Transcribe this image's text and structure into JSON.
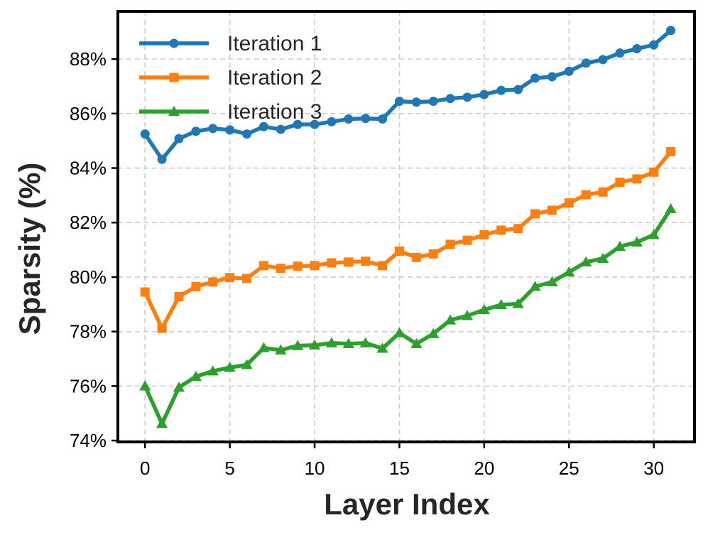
{
  "chart_data": {
    "type": "line",
    "xlabel": "Layer Index",
    "ylabel": "Sparsity (%)",
    "xlim": [
      -1.6,
      32.4
    ],
    "ylim": [
      73.95,
      89.75
    ],
    "xticks": [
      0,
      5,
      10,
      15,
      20,
      25,
      30
    ],
    "yticks": [
      74,
      76,
      78,
      80,
      82,
      84,
      86,
      88
    ],
    "ytick_suffix": "%",
    "grid": true,
    "legend_position": "top-left",
    "x": [
      0,
      1,
      2,
      3,
      4,
      5,
      6,
      7,
      8,
      9,
      10,
      11,
      12,
      13,
      14,
      15,
      16,
      17,
      18,
      19,
      20,
      21,
      22,
      23,
      24,
      25,
      26,
      27,
      28,
      29,
      30,
      31
    ],
    "series": [
      {
        "name": "Iteration 1",
        "color": "#1f77b4",
        "marker": "circle",
        "values": [
          85.25,
          84.32,
          85.08,
          85.35,
          85.45,
          85.4,
          85.25,
          85.52,
          85.42,
          85.6,
          85.6,
          85.7,
          85.8,
          85.82,
          85.8,
          86.45,
          86.42,
          86.45,
          86.55,
          86.6,
          86.7,
          86.85,
          86.88,
          87.3,
          87.35,
          87.55,
          87.85,
          87.98,
          88.22,
          88.38,
          88.52,
          89.05
        ]
      },
      {
        "name": "Iteration 2",
        "color": "#ff7f0e",
        "marker": "square",
        "values": [
          79.45,
          78.12,
          79.28,
          79.65,
          79.82,
          79.98,
          79.95,
          80.42,
          80.32,
          80.4,
          80.42,
          80.52,
          80.55,
          80.58,
          80.42,
          80.95,
          80.72,
          80.85,
          81.2,
          81.35,
          81.55,
          81.72,
          81.78,
          82.32,
          82.45,
          82.72,
          83.02,
          83.12,
          83.48,
          83.6,
          83.85,
          84.6
        ]
      },
      {
        "name": "Iteration 3",
        "color": "#2ca02c",
        "marker": "triangle",
        "values": [
          76.0,
          74.62,
          75.95,
          76.35,
          76.55,
          76.68,
          76.78,
          77.4,
          77.32,
          77.48,
          77.5,
          77.58,
          77.55,
          77.58,
          77.38,
          77.95,
          77.55,
          77.92,
          78.42,
          78.58,
          78.8,
          78.98,
          79.02,
          79.65,
          79.82,
          80.18,
          80.55,
          80.68,
          81.12,
          81.28,
          81.55,
          82.5
        ]
      }
    ]
  }
}
